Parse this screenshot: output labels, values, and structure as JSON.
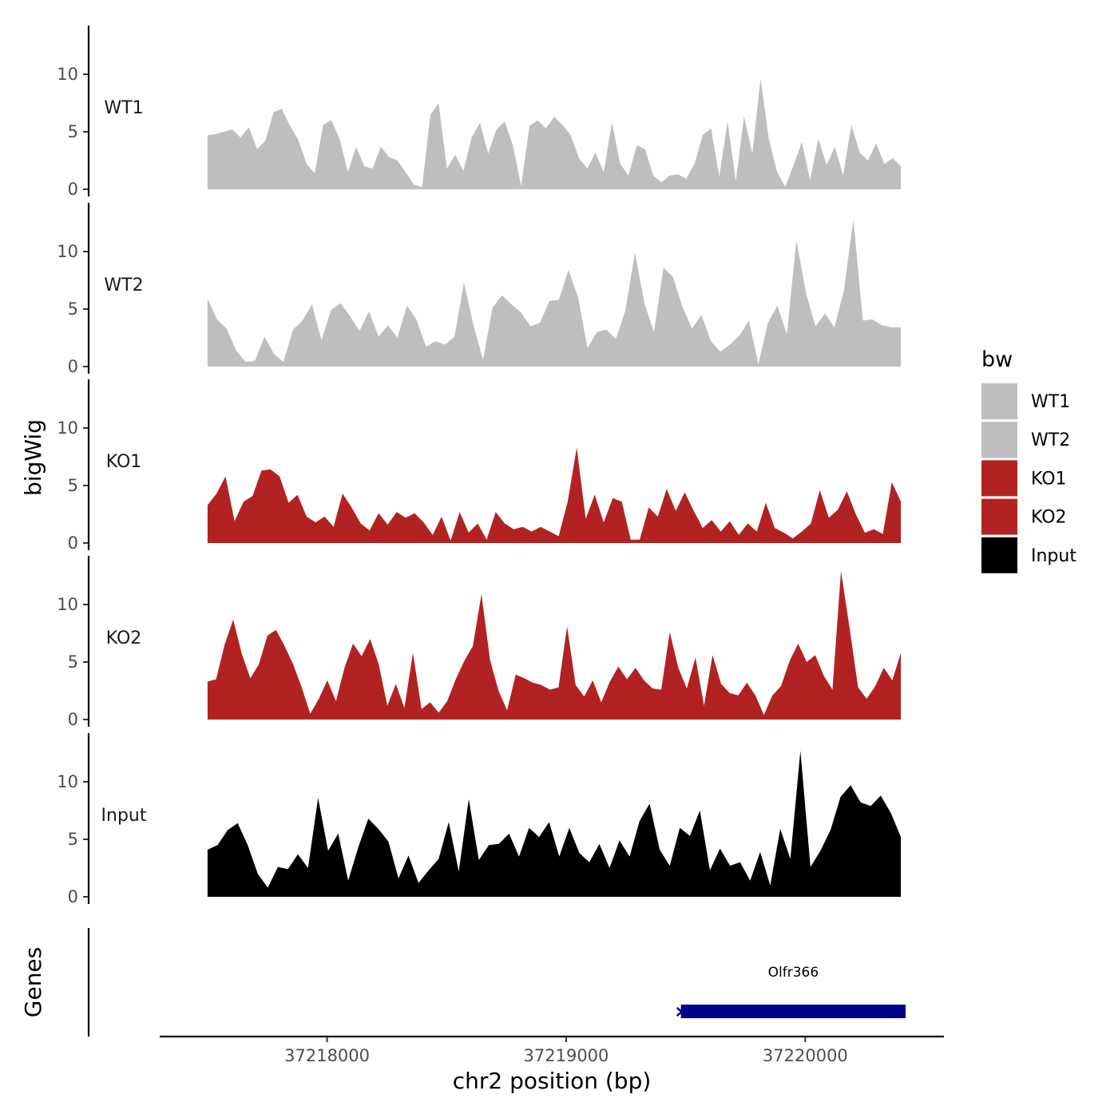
{
  "chart_data": {
    "type": "area",
    "ylabel": "bigWig",
    "xlabel": "chr2 position (bp)",
    "genes_label": "Genes",
    "xlim": [
      37217300,
      37220580
    ],
    "x_range": [
      37217500,
      37220400
    ],
    "x_ticks": [
      37218000,
      37219000,
      37220000
    ],
    "x_tick_labels": [
      "37218000",
      "37219000",
      "37220000"
    ],
    "ylim": [
      0,
      14
    ],
    "y_ticks": [
      0,
      5,
      10
    ],
    "y_tick_labels": [
      "0",
      "5",
      "10"
    ],
    "legend": {
      "title": "bw",
      "entries": [
        {
          "label": "WT1",
          "color": "#BEBEBE"
        },
        {
          "label": "WT2",
          "color": "#BEBEBE"
        },
        {
          "label": "KO1",
          "color": "#B22222"
        },
        {
          "label": "KO2",
          "color": "#B22222"
        },
        {
          "label": "Input",
          "color": "#000000"
        }
      ]
    },
    "series": [
      {
        "name": "WT1",
        "color": "#BEBEBE",
        "values": [
          4.7,
          4.8,
          5,
          5.2,
          4.5,
          5.4,
          3.5,
          4.2,
          6.7,
          7,
          5.5,
          4.3,
          2.2,
          1.4,
          5.6,
          6,
          4.4,
          1.5,
          3.7,
          2,
          1.8,
          3.7,
          2.8,
          2.5,
          1.5,
          0.4,
          0.2,
          6.5,
          7.5,
          1.8,
          3,
          1.6,
          4.5,
          5.8,
          3.1,
          5.2,
          5.9,
          3.8,
          0.3,
          5.5,
          6,
          5.3,
          6.3,
          5.6,
          4.7,
          2.7,
          1.8,
          3.2,
          1.5,
          5.8,
          2.2,
          1.2,
          3.8,
          3.5,
          1.2,
          0.6,
          1.2,
          1.3,
          0.9,
          2.2,
          4.7,
          5.3,
          1.1,
          5.9,
          0.7,
          6.3,
          3.1,
          9.6,
          4.4,
          1.5,
          0.2,
          2.1,
          4.1,
          0.8,
          4.4,
          2.1,
          3.7,
          1.2,
          5.6,
          3.2,
          2.5,
          4,
          2.2,
          2.7,
          2
        ]
      },
      {
        "name": "WT2",
        "color": "#BEBEBE",
        "values": [
          5.9,
          4.1,
          3.3,
          1.4,
          0.4,
          0.5,
          2.6,
          1.1,
          0.4,
          3.2,
          4,
          5.4,
          2.3,
          4.9,
          5.5,
          4.4,
          3.1,
          4.8,
          2.6,
          3.6,
          2.5,
          5.3,
          4.1,
          1.7,
          2.2,
          1.9,
          2.6,
          7.3,
          3.6,
          0.6,
          5.1,
          6.2,
          5.4,
          4.7,
          3.5,
          3.8,
          5.7,
          5.8,
          8.4,
          6.1,
          1.6,
          3,
          3.2,
          2.4,
          4.9,
          9.9,
          5.5,
          3,
          8.6,
          7.8,
          5.2,
          3.3,
          4.5,
          2.2,
          1.3,
          1.9,
          2.7,
          4,
          0.2,
          3.8,
          5.3,
          2.8,
          11,
          6.4,
          3.5,
          4.6,
          3.4,
          6.6,
          12.8,
          4,
          4.1,
          3.6,
          3.4,
          3.4
        ]
      },
      {
        "name": "KO1",
        "color": "#B22222",
        "values": [
          3.3,
          4.3,
          5.8,
          1.9,
          3.6,
          4.1,
          6.3,
          6.4,
          5.8,
          3.5,
          4.2,
          2.3,
          1.8,
          2.3,
          1.4,
          4.3,
          3.1,
          1.7,
          1.1,
          2.6,
          1.6,
          2.7,
          2.2,
          2.6,
          1.8,
          0.7,
          2.3,
          0.2,
          2.7,
          0.9,
          1.7,
          0.3,
          2.7,
          1.7,
          1.2,
          1.4,
          1,
          1.4,
          1,
          0.6,
          3.6,
          8.3,
          2.1,
          4.2,
          1.8,
          3.9,
          3.6,
          0.3,
          0.3,
          3.1,
          2.3,
          4.7,
          2.8,
          4.4,
          2.8,
          1.3,
          2,
          1,
          1.9,
          0.7,
          1.7,
          1,
          3.5,
          1.3,
          0.9,
          0.4,
          1,
          1.7,
          4.6,
          2.2,
          2.9,
          4.5,
          2.5,
          0.9,
          1.2,
          0.8,
          5.3,
          3.6
        ]
      },
      {
        "name": "KO2",
        "color": "#B22222",
        "values": [
          3.3,
          3.5,
          6.5,
          8.7,
          5.7,
          3.6,
          4.8,
          7.3,
          7.8,
          6.4,
          4.8,
          2.8,
          0.5,
          1.8,
          3.4,
          1.6,
          4.5,
          6.6,
          5.5,
          7,
          4.8,
          1.2,
          3.1,
          1,
          5.8,
          0.9,
          1.5,
          0.6,
          1.6,
          3.5,
          5.1,
          6.4,
          10.9,
          5.2,
          2.5,
          0.8,
          3.9,
          3.6,
          3.2,
          3,
          2.6,
          2.8,
          8.1,
          3,
          2,
          3.4,
          1.5,
          3.3,
          4.6,
          3.5,
          4.5,
          3.4,
          2.7,
          2.6,
          7.6,
          4.5,
          2.7,
          5.4,
          1.2,
          5.6,
          3.1,
          2.3,
          2.1,
          3.2,
          2.1,
          0.4,
          2.1,
          2.9,
          5.1,
          6.6,
          5,
          5.6,
          3.8,
          2.6,
          12.9,
          8,
          2.8,
          1.8,
          2.9,
          4.5,
          3.4,
          5.8
        ]
      },
      {
        "name": "Input",
        "color": "#000000",
        "values": [
          4.1,
          4.5,
          5.8,
          6.4,
          4.5,
          2,
          0.8,
          2.6,
          2.4,
          3.7,
          2.5,
          8.6,
          4,
          5.5,
          1.4,
          4.3,
          6.8,
          5.9,
          4.8,
          1.6,
          3.6,
          1.2,
          2.3,
          3.3,
          6.5,
          2.2,
          8.5,
          3.2,
          4.5,
          4.6,
          5.5,
          3.5,
          6,
          5.2,
          6.5,
          3.5,
          6,
          3.8,
          3,
          4.6,
          2.5,
          4.9,
          3.5,
          6.6,
          8.1,
          4.1,
          2.7,
          6,
          5.3,
          7.5,
          2.3,
          4.2,
          2.7,
          3,
          1.4,
          3.9,
          1,
          5.9,
          3.3,
          12.7,
          2.6,
          4,
          5.8,
          8.7,
          9.7,
          8.2,
          7.9,
          8.8,
          7.3,
          5.2
        ]
      }
    ],
    "genes": [
      {
        "name": "Olfr366",
        "start": 37219480,
        "end": 37220420,
        "color": "#00008B"
      }
    ]
  }
}
